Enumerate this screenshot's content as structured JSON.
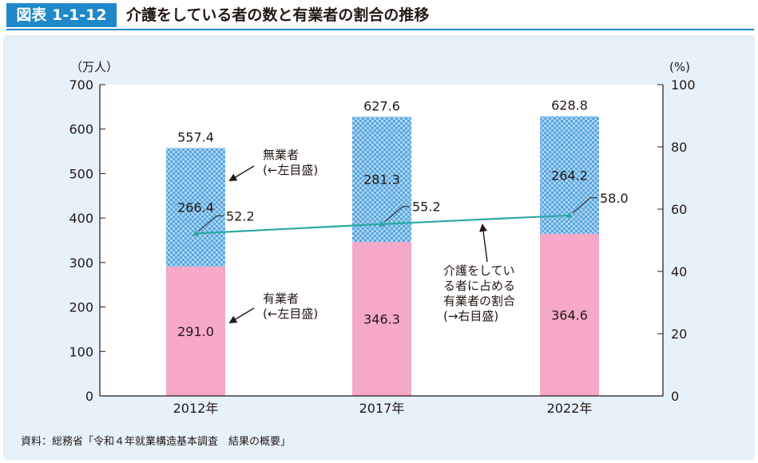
{
  "header": {
    "figure_label": "図表 1-1-12",
    "title": "介護をしている者の数と有業者の割合の推移"
  },
  "source": "資料：総務省「令和４年就業構造基本調査　結果の概要」",
  "chart_data": {
    "type": "bar",
    "categories": [
      "2012年",
      "2017年",
      "2022年"
    ],
    "series": [
      {
        "name": "有業者",
        "type": "bar",
        "axis": "left",
        "color": "#f5a8c8",
        "values": [
          291.0,
          346.3,
          364.6
        ]
      },
      {
        "name": "無業者",
        "type": "bar",
        "axis": "left",
        "color": "#8ec4ea",
        "pattern": "checker",
        "values": [
          266.4,
          281.3,
          264.2
        ]
      },
      {
        "name": "介護をしている者に占める有業者の割合",
        "type": "line",
        "axis": "right",
        "color": "#2aa9a3",
        "values": [
          52.2,
          55.2,
          58.0
        ]
      }
    ],
    "totals": [
      "557.4",
      "627.6",
      "628.8"
    ],
    "bar_labels_employed": [
      "291.0",
      "346.3",
      "364.6"
    ],
    "bar_labels_nonemployed": [
      "266.4",
      "281.3",
      "264.2"
    ],
    "line_labels": [
      "52.2",
      "55.2",
      "58.0"
    ],
    "left_axis": {
      "unit": "（万人）",
      "ylim": [
        0,
        700
      ],
      "ticks": [
        "0",
        "100",
        "200",
        "300",
        "400",
        "500",
        "600",
        "700"
      ]
    },
    "right_axis": {
      "unit": "(%)",
      "ylim": [
        0,
        100
      ],
      "ticks": [
        "0",
        "20",
        "40",
        "60",
        "80",
        "100"
      ]
    },
    "annotations": {
      "nonemployed": [
        "無業者",
        "(←左目盛)"
      ],
      "employed": [
        "有業者",
        "(←左目盛)"
      ],
      "ratio": [
        "介護をしてい",
        "る者に占める",
        "有業者の割合",
        "(→右目盛)"
      ]
    },
    "stacked": true,
    "grid": false
  }
}
